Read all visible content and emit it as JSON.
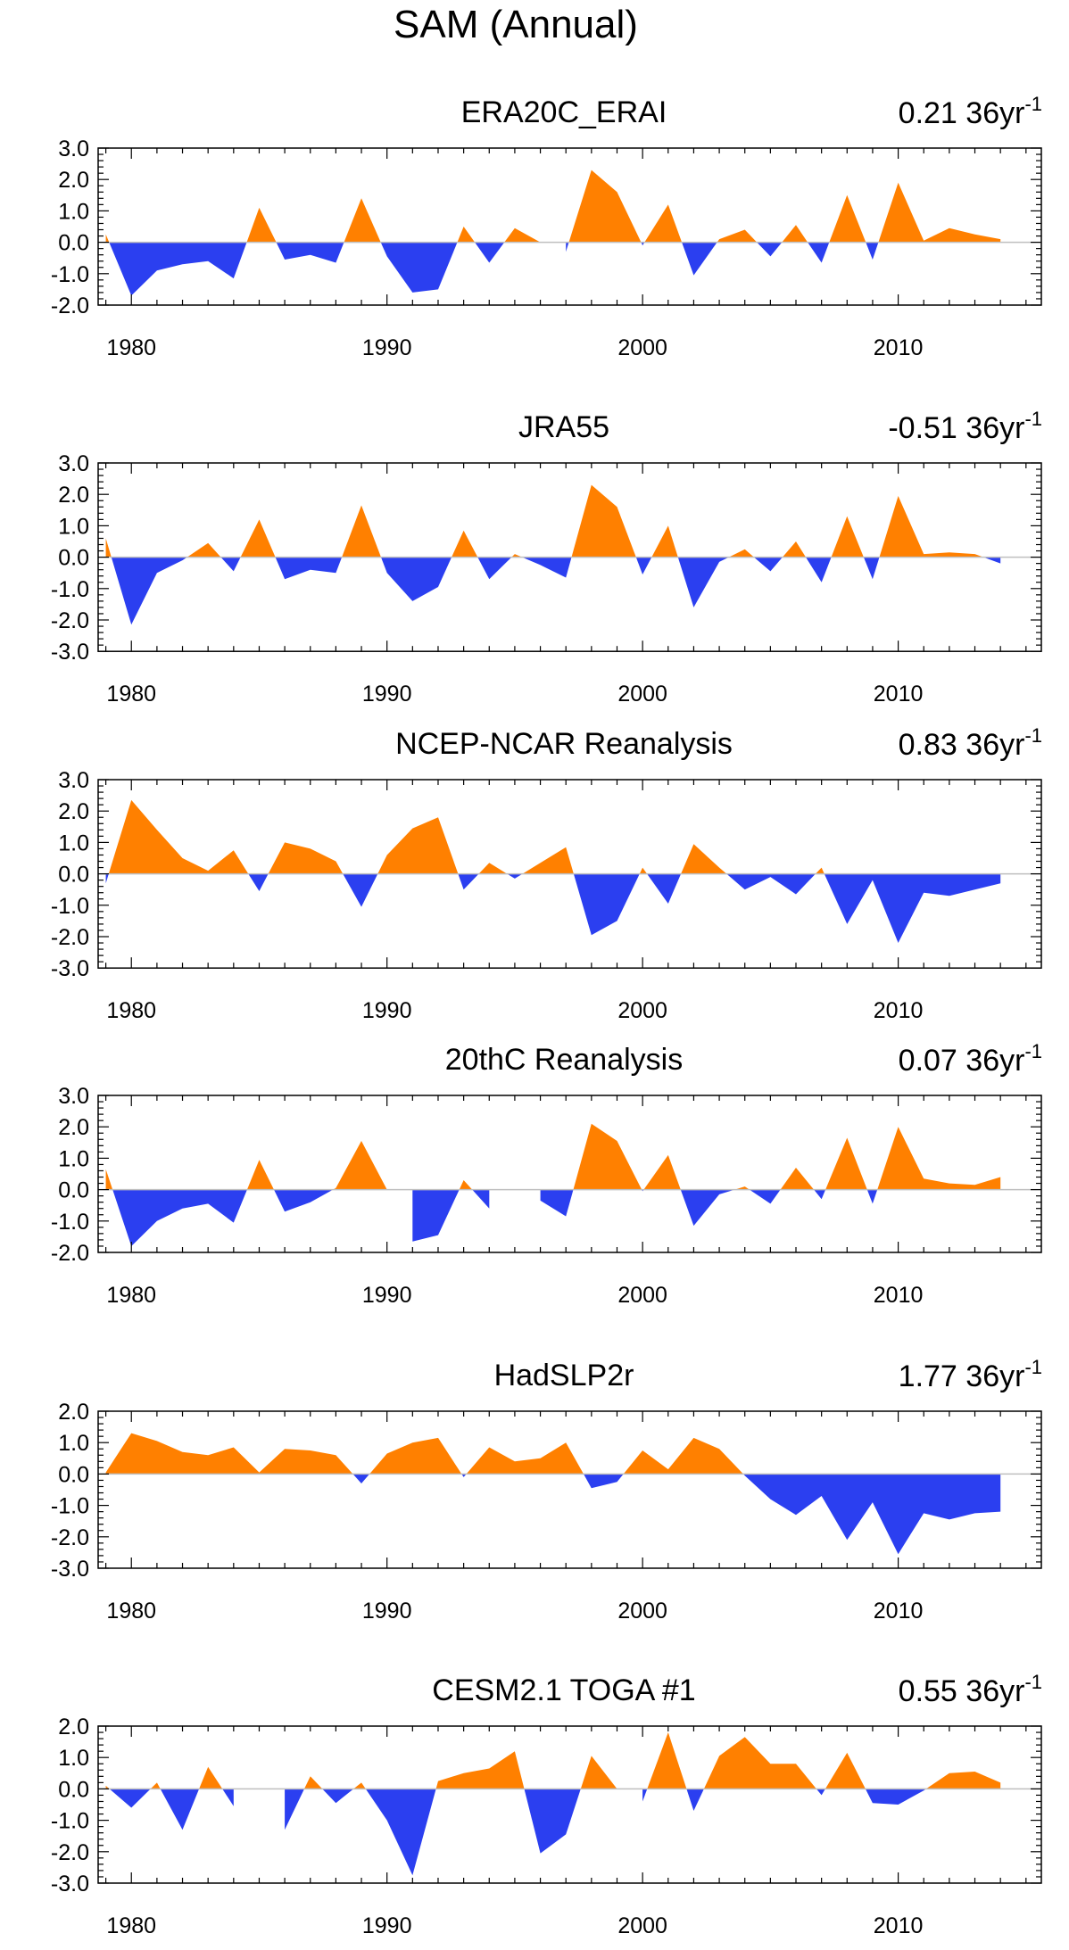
{
  "figure_title": "SAM (Annual)",
  "colors": {
    "positive": "#ff8000",
    "negative": "#2b3ff0",
    "axis": "#000000",
    "zero_line": "#bfbfbf"
  },
  "chart_data": [
    {
      "type": "area",
      "title": "ERA20C_ERAI",
      "trend_label": "0.21 36yr",
      "trend_superscript": "-1",
      "xlabel": "",
      "ylabel": "",
      "xlim": [
        1978.7,
        2015.6
      ],
      "ylim": [
        -2.0,
        3.0
      ],
      "ytick_labels": [
        "3.0",
        "2.0",
        "1.0",
        "0.0",
        "-1.0",
        "-2.0"
      ],
      "ytick_values": [
        3,
        2,
        1,
        0,
        -1,
        -2
      ],
      "xtick_labels": [
        "1980",
        "1990",
        "2000",
        "2010"
      ],
      "xtick_values": [
        1980,
        1990,
        2000,
        2010
      ],
      "x": [
        1979,
        1980,
        1981,
        1982,
        1983,
        1984,
        1985,
        1986,
        1987,
        1988,
        1989,
        1990,
        1991,
        1992,
        1993,
        1994,
        1995,
        1996,
        1997,
        1998,
        1999,
        2000,
        2001,
        2002,
        2003,
        2004,
        2005,
        2006,
        2007,
        2008,
        2009,
        2010,
        2011,
        2012,
        2013,
        2014
      ],
      "values": [
        0.25,
        -1.7,
        -0.9,
        -0.7,
        -0.6,
        -1.15,
        1.1,
        -0.55,
        -0.4,
        -0.65,
        1.4,
        -0.45,
        -1.6,
        -1.5,
        0.5,
        -0.65,
        0.45,
        0.0,
        -0.3,
        2.3,
        1.6,
        -0.1,
        1.2,
        -1.05,
        0.1,
        0.4,
        -0.45,
        0.55,
        -0.65,
        1.5,
        -0.55,
        1.9,
        0.05,
        0.45,
        0.25,
        0.1
      ]
    },
    {
      "type": "area",
      "title": "JRA55",
      "trend_label": "-0.51 36yr",
      "trend_superscript": "-1",
      "xlabel": "",
      "ylabel": "",
      "xlim": [
        1978.7,
        2015.6
      ],
      "ylim": [
        -3.0,
        3.0
      ],
      "ytick_labels": [
        "3.0",
        "2.0",
        "1.0",
        "0.0",
        "-1.0",
        "-2.0",
        "-3.0"
      ],
      "ytick_values": [
        3,
        2,
        1,
        0,
        -1,
        -2,
        -3
      ],
      "xtick_labels": [
        "1980",
        "1990",
        "2000",
        "2010"
      ],
      "xtick_values": [
        1980,
        1990,
        2000,
        2010
      ],
      "x": [
        1979,
        1980,
        1981,
        1982,
        1983,
        1984,
        1985,
        1986,
        1987,
        1988,
        1989,
        1990,
        1991,
        1992,
        1993,
        1994,
        1995,
        1996,
        1997,
        1998,
        1999,
        2000,
        2001,
        2002,
        2003,
        2004,
        2005,
        2006,
        2007,
        2008,
        2009,
        2010,
        2011,
        2012,
        2013,
        2014
      ],
      "values": [
        0.6,
        -2.15,
        -0.5,
        -0.1,
        0.45,
        -0.45,
        1.2,
        -0.7,
        -0.4,
        -0.5,
        1.65,
        -0.5,
        -1.4,
        -0.95,
        0.85,
        -0.7,
        0.1,
        -0.25,
        -0.65,
        2.3,
        1.6,
        -0.55,
        1.0,
        -1.6,
        -0.15,
        0.25,
        -0.45,
        0.5,
        -0.8,
        1.3,
        -0.7,
        1.95,
        0.1,
        0.15,
        0.1,
        -0.2
      ]
    },
    {
      "type": "area",
      "title": "NCEP-NCAR Reanalysis",
      "trend_label": "0.83 36yr",
      "trend_superscript": "-1",
      "xlabel": "",
      "ylabel": "",
      "xlim": [
        1978.7,
        2015.6
      ],
      "ylim": [
        -3.0,
        3.0
      ],
      "ytick_labels": [
        "3.0",
        "2.0",
        "1.0",
        "0.0",
        "-1.0",
        "-2.0",
        "-3.0"
      ],
      "ytick_values": [
        3,
        2,
        1,
        0,
        -1,
        -2,
        -3
      ],
      "xtick_labels": [
        "1980",
        "1990",
        "2000",
        "2010"
      ],
      "xtick_values": [
        1980,
        1990,
        2000,
        2010
      ],
      "x": [
        1979,
        1980,
        1981,
        1982,
        1983,
        1984,
        1985,
        1986,
        1987,
        1988,
        1989,
        1990,
        1991,
        1992,
        1993,
        1994,
        1995,
        1996,
        1997,
        1998,
        1999,
        2000,
        2001,
        2002,
        2003,
        2004,
        2005,
        2006,
        2007,
        2008,
        2009,
        2010,
        2011,
        2012,
        2013,
        2014
      ],
      "values": [
        -0.3,
        2.35,
        1.4,
        0.5,
        0.1,
        0.75,
        -0.55,
        1.0,
        0.8,
        0.4,
        -1.05,
        0.6,
        1.45,
        1.8,
        -0.5,
        0.35,
        -0.15,
        0.35,
        0.85,
        -1.95,
        -1.5,
        0.2,
        -0.95,
        0.95,
        0.2,
        -0.5,
        -0.1,
        -0.65,
        0.2,
        -1.6,
        -0.2,
        -2.2,
        -0.6,
        -0.7,
        -0.5,
        -0.3
      ]
    },
    {
      "type": "area",
      "title": "20thC Reanalysis",
      "trend_label": "0.07 36yr",
      "trend_superscript": "-1",
      "xlabel": "",
      "ylabel": "",
      "xlim": [
        1978.7,
        2015.6
      ],
      "ylim": [
        -2.0,
        3.0
      ],
      "ytick_labels": [
        "3.0",
        "2.0",
        "1.0",
        "0.0",
        "-1.0",
        "-2.0"
      ],
      "ytick_values": [
        3,
        2,
        1,
        0,
        -1,
        -2
      ],
      "xtick_labels": [
        "1980",
        "1990",
        "2000",
        "2010"
      ],
      "xtick_values": [
        1980,
        1990,
        2000,
        2010
      ],
      "x": [
        1979,
        1980,
        1981,
        1982,
        1983,
        1984,
        1985,
        1986,
        1987,
        1988,
        1989,
        1990,
        1991,
        1992,
        1993,
        1994,
        1995,
        1996,
        1997,
        1998,
        1999,
        2000,
        2001,
        2002,
        2003,
        2004,
        2005,
        2006,
        2007,
        2008,
        2009,
        2010,
        2011,
        2012,
        2013,
        2014
      ],
      "values": [
        0.65,
        -1.8,
        -1.0,
        -0.6,
        -0.45,
        -1.05,
        0.95,
        -0.7,
        -0.4,
        0.05,
        1.55,
        0.0,
        -1.65,
        -1.45,
        0.3,
        -0.6,
        0.0,
        -0.35,
        -0.85,
        2.1,
        1.55,
        -0.05,
        1.1,
        -1.15,
        -0.15,
        0.1,
        -0.45,
        0.7,
        -0.3,
        1.65,
        -0.45,
        2.0,
        0.35,
        0.2,
        0.15,
        0.4
      ]
    },
    {
      "type": "area",
      "title": "HadSLP2r",
      "trend_label": "1.77 36yr",
      "trend_superscript": "-1",
      "xlabel": "",
      "ylabel": "",
      "xlim": [
        1978.7,
        2015.6
      ],
      "ylim": [
        -3.0,
        2.0
      ],
      "ytick_labels": [
        "2.0",
        "1.0",
        "0.0",
        "-1.0",
        "-2.0",
        "-3.0"
      ],
      "ytick_values": [
        2,
        1,
        0,
        -1,
        -2,
        -3
      ],
      "xtick_labels": [
        "1980",
        "1990",
        "2000",
        "2010"
      ],
      "xtick_values": [
        1980,
        1990,
        2000,
        2010
      ],
      "x": [
        1979,
        1980,
        1981,
        1982,
        1983,
        1984,
        1985,
        1986,
        1987,
        1988,
        1989,
        1990,
        1991,
        1992,
        1993,
        1994,
        1995,
        1996,
        1997,
        1998,
        1999,
        2000,
        2001,
        2002,
        2003,
        2004,
        2005,
        2006,
        2007,
        2008,
        2009,
        2010,
        2011,
        2012,
        2013,
        2014
      ],
      "values": [
        0.05,
        1.3,
        1.05,
        0.7,
        0.6,
        0.85,
        0.05,
        0.8,
        0.75,
        0.6,
        -0.3,
        0.65,
        1.0,
        1.15,
        -0.1,
        0.85,
        0.4,
        0.5,
        1.0,
        -0.45,
        -0.25,
        0.75,
        0.15,
        1.15,
        0.8,
        -0.05,
        -0.8,
        -1.3,
        -0.7,
        -2.1,
        -0.9,
        -2.55,
        -1.25,
        -1.45,
        -1.25,
        -1.2
      ]
    },
    {
      "type": "area",
      "title": "CESM2.1 TOGA #1",
      "trend_label": "0.55 36yr",
      "trend_superscript": "-1",
      "xlabel": "",
      "ylabel": "",
      "xlim": [
        1978.7,
        2015.6
      ],
      "ylim": [
        -3.0,
        2.0
      ],
      "ytick_labels": [
        "2.0",
        "1.0",
        "0.0",
        "-1.0",
        "-2.0",
        "-3.0"
      ],
      "ytick_values": [
        2,
        1,
        0,
        -1,
        -2,
        -3
      ],
      "xtick_labels": [
        "1980",
        "1990",
        "2000",
        "2010"
      ],
      "xtick_values": [
        1980,
        1990,
        2000,
        2010
      ],
      "x": [
        1979,
        1980,
        1981,
        1982,
        1983,
        1984,
        1985,
        1986,
        1987,
        1988,
        1989,
        1990,
        1991,
        1992,
        1993,
        1994,
        1995,
        1996,
        1997,
        1998,
        1999,
        2000,
        2001,
        2002,
        2003,
        2004,
        2005,
        2006,
        2007,
        2008,
        2009,
        2010,
        2011,
        2012,
        2013,
        2014
      ],
      "values": [
        0.1,
        -0.6,
        0.2,
        -1.3,
        0.7,
        -0.55,
        0.0,
        -1.3,
        0.4,
        -0.45,
        0.2,
        -1.0,
        -2.75,
        0.25,
        0.5,
        0.65,
        1.2,
        -2.05,
        -1.45,
        1.05,
        0.0,
        -0.4,
        1.8,
        -0.7,
        1.05,
        1.65,
        0.8,
        0.8,
        -0.2,
        1.15,
        -0.45,
        -0.5,
        -0.05,
        0.5,
        0.55,
        0.2
      ]
    }
  ]
}
